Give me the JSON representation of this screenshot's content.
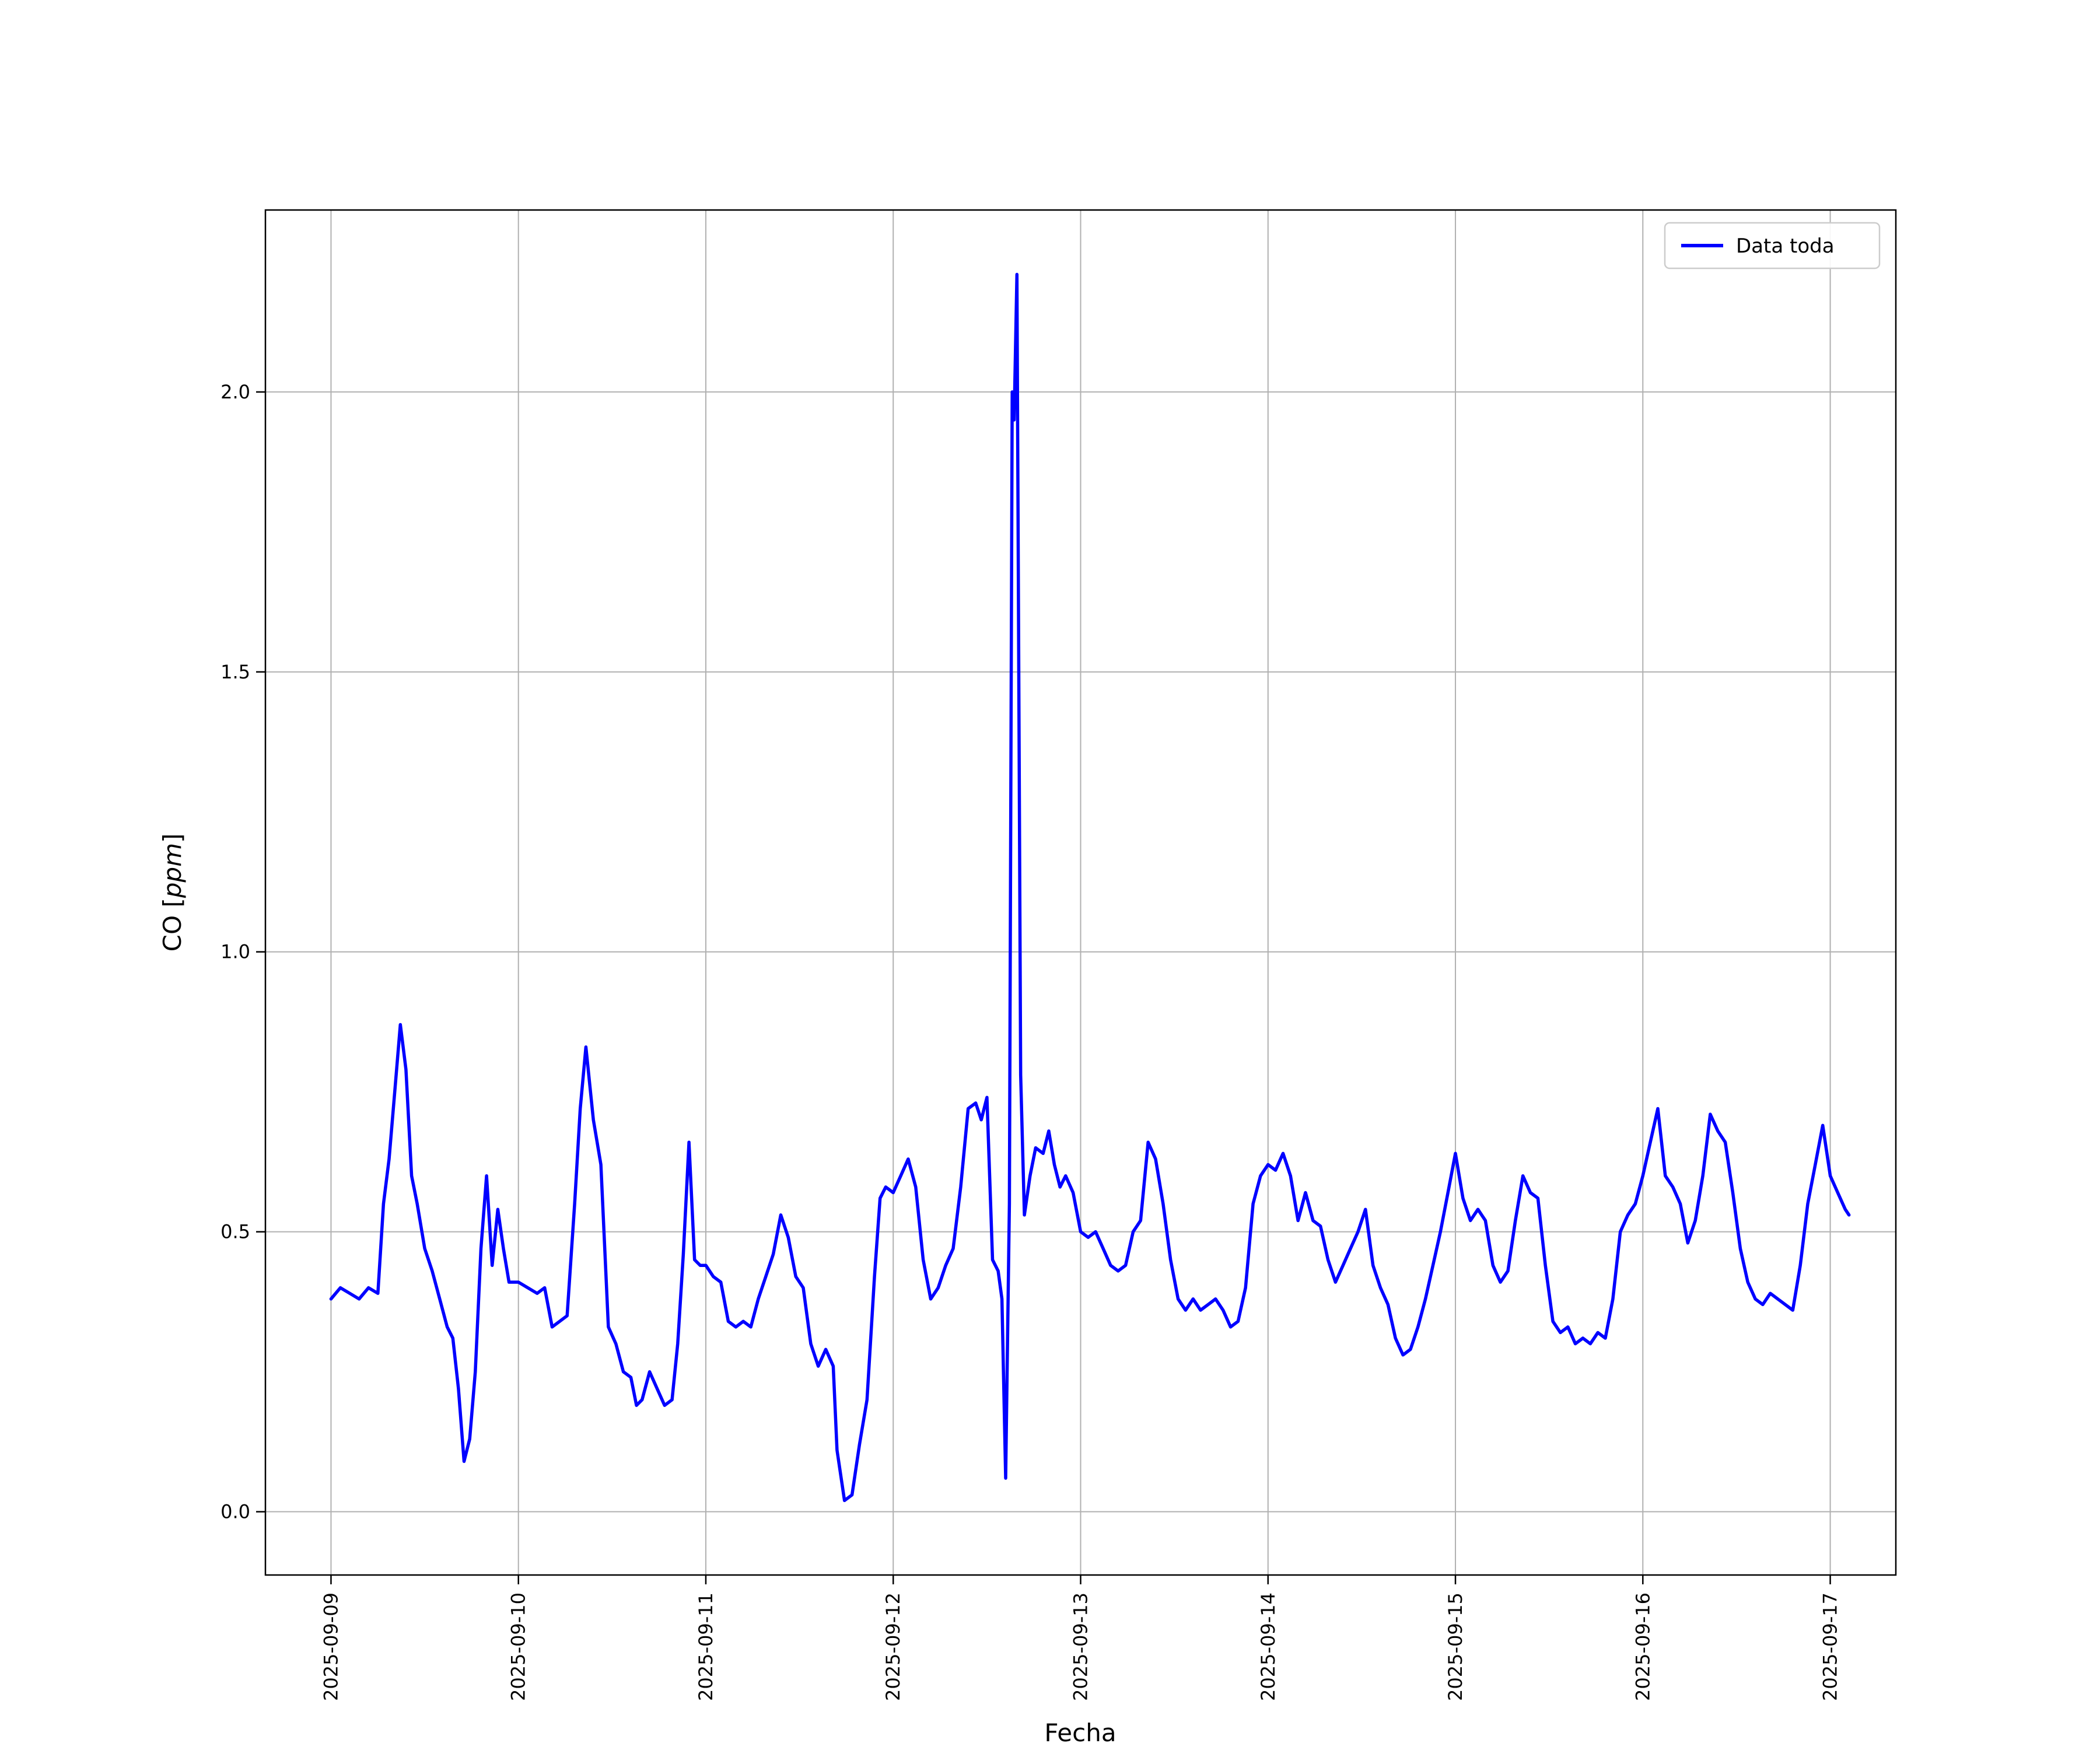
{
  "figure": {
    "background": "#ffffff",
    "axes_edge_color": "#000000",
    "grid_color": "#b0b0b0",
    "legend_edge_color": "#cccccc"
  },
  "legend": {
    "position": "upper right",
    "items": [
      {
        "label": "Data toda",
        "color": "#0000ff"
      }
    ]
  },
  "chart_data": {
    "type": "line",
    "title": "",
    "xlabel": "Fecha",
    "ylabel": "CO [ppm]",
    "ylabel_parts": {
      "prefix": "CO [",
      "math": "ppm",
      "suffix": "]"
    },
    "grid": true,
    "legend_position": "upper right",
    "xlim": [
      -0.35,
      8.35
    ],
    "ylim": [
      -0.113,
      2.325
    ],
    "x_unit": "days since 2025-09-09",
    "x_tick_positions": [
      0,
      1,
      2,
      3,
      4,
      5,
      6,
      7,
      8
    ],
    "x_tick_labels": [
      "2025-09-09",
      "2025-09-10",
      "2025-09-11",
      "2025-09-12",
      "2025-09-13",
      "2025-09-14",
      "2025-09-15",
      "2025-09-16",
      "2025-09-17"
    ],
    "y_ticks": [
      0.0,
      0.5,
      1.0,
      1.5,
      2.0
    ],
    "y_tick_labels": [
      "0.0",
      "0.5",
      "1.0",
      "1.5",
      "2.0"
    ],
    "series": [
      {
        "name": "Data toda",
        "color": "#0000ff",
        "line_width": 5.5,
        "points": [
          [
            0.0,
            0.38
          ],
          [
            0.05,
            0.4
          ],
          [
            0.1,
            0.39
          ],
          [
            0.15,
            0.38
          ],
          [
            0.2,
            0.4
          ],
          [
            0.25,
            0.39
          ],
          [
            0.28,
            0.55
          ],
          [
            0.31,
            0.63
          ],
          [
            0.34,
            0.75
          ],
          [
            0.37,
            0.87
          ],
          [
            0.4,
            0.79
          ],
          [
            0.43,
            0.6
          ],
          [
            0.46,
            0.55
          ],
          [
            0.5,
            0.47
          ],
          [
            0.54,
            0.43
          ],
          [
            0.58,
            0.38
          ],
          [
            0.62,
            0.33
          ],
          [
            0.65,
            0.31
          ],
          [
            0.68,
            0.22
          ],
          [
            0.71,
            0.09
          ],
          [
            0.74,
            0.13
          ],
          [
            0.77,
            0.25
          ],
          [
            0.8,
            0.47
          ],
          [
            0.83,
            0.6
          ],
          [
            0.86,
            0.44
          ],
          [
            0.89,
            0.54
          ],
          [
            0.92,
            0.47
          ],
          [
            0.95,
            0.41
          ],
          [
            1.0,
            0.41
          ],
          [
            1.05,
            0.4
          ],
          [
            1.1,
            0.39
          ],
          [
            1.14,
            0.4
          ],
          [
            1.18,
            0.33
          ],
          [
            1.22,
            0.34
          ],
          [
            1.26,
            0.35
          ],
          [
            1.3,
            0.55
          ],
          [
            1.33,
            0.72
          ],
          [
            1.36,
            0.83
          ],
          [
            1.4,
            0.7
          ],
          [
            1.44,
            0.62
          ],
          [
            1.48,
            0.33
          ],
          [
            1.52,
            0.3
          ],
          [
            1.56,
            0.25
          ],
          [
            1.6,
            0.24
          ],
          [
            1.63,
            0.19
          ],
          [
            1.66,
            0.2
          ],
          [
            1.7,
            0.25
          ],
          [
            1.74,
            0.22
          ],
          [
            1.78,
            0.19
          ],
          [
            1.82,
            0.2
          ],
          [
            1.85,
            0.3
          ],
          [
            1.88,
            0.46
          ],
          [
            1.91,
            0.66
          ],
          [
            1.94,
            0.45
          ],
          [
            1.97,
            0.44
          ],
          [
            2.0,
            0.44
          ],
          [
            2.04,
            0.42
          ],
          [
            2.08,
            0.41
          ],
          [
            2.12,
            0.34
          ],
          [
            2.16,
            0.33
          ],
          [
            2.2,
            0.34
          ],
          [
            2.24,
            0.33
          ],
          [
            2.28,
            0.38
          ],
          [
            2.32,
            0.42
          ],
          [
            2.36,
            0.46
          ],
          [
            2.4,
            0.53
          ],
          [
            2.44,
            0.49
          ],
          [
            2.48,
            0.42
          ],
          [
            2.52,
            0.4
          ],
          [
            2.56,
            0.3
          ],
          [
            2.6,
            0.26
          ],
          [
            2.64,
            0.29
          ],
          [
            2.68,
            0.26
          ],
          [
            2.7,
            0.11
          ],
          [
            2.74,
            0.02
          ],
          [
            2.78,
            0.03
          ],
          [
            2.82,
            0.12
          ],
          [
            2.86,
            0.2
          ],
          [
            2.9,
            0.42
          ],
          [
            2.93,
            0.56
          ],
          [
            2.96,
            0.58
          ],
          [
            3.0,
            0.57
          ],
          [
            3.04,
            0.6
          ],
          [
            3.08,
            0.63
          ],
          [
            3.12,
            0.58
          ],
          [
            3.16,
            0.45
          ],
          [
            3.2,
            0.38
          ],
          [
            3.24,
            0.4
          ],
          [
            3.28,
            0.44
          ],
          [
            3.32,
            0.47
          ],
          [
            3.36,
            0.58
          ],
          [
            3.4,
            0.72
          ],
          [
            3.44,
            0.73
          ],
          [
            3.47,
            0.7
          ],
          [
            3.5,
            0.74
          ],
          [
            3.53,
            0.45
          ],
          [
            3.56,
            0.43
          ],
          [
            3.58,
            0.38
          ],
          [
            3.6,
            0.06
          ],
          [
            3.62,
            0.55
          ],
          [
            3.635,
            2.0
          ],
          [
            3.645,
            1.95
          ],
          [
            3.66,
            2.21
          ],
          [
            3.68,
            0.78
          ],
          [
            3.7,
            0.53
          ],
          [
            3.73,
            0.6
          ],
          [
            3.76,
            0.65
          ],
          [
            3.8,
            0.64
          ],
          [
            3.83,
            0.68
          ],
          [
            3.86,
            0.62
          ],
          [
            3.89,
            0.58
          ],
          [
            3.92,
            0.6
          ],
          [
            3.96,
            0.57
          ],
          [
            4.0,
            0.5
          ],
          [
            4.04,
            0.49
          ],
          [
            4.08,
            0.5
          ],
          [
            4.12,
            0.47
          ],
          [
            4.16,
            0.44
          ],
          [
            4.2,
            0.43
          ],
          [
            4.24,
            0.44
          ],
          [
            4.28,
            0.5
          ],
          [
            4.32,
            0.52
          ],
          [
            4.36,
            0.66
          ],
          [
            4.4,
            0.63
          ],
          [
            4.44,
            0.55
          ],
          [
            4.48,
            0.45
          ],
          [
            4.52,
            0.38
          ],
          [
            4.56,
            0.36
          ],
          [
            4.6,
            0.38
          ],
          [
            4.64,
            0.36
          ],
          [
            4.68,
            0.37
          ],
          [
            4.72,
            0.38
          ],
          [
            4.76,
            0.36
          ],
          [
            4.8,
            0.33
          ],
          [
            4.84,
            0.34
          ],
          [
            4.88,
            0.4
          ],
          [
            4.92,
            0.55
          ],
          [
            4.96,
            0.6
          ],
          [
            5.0,
            0.62
          ],
          [
            5.04,
            0.61
          ],
          [
            5.08,
            0.64
          ],
          [
            5.12,
            0.6
          ],
          [
            5.16,
            0.52
          ],
          [
            5.2,
            0.57
          ],
          [
            5.24,
            0.52
          ],
          [
            5.28,
            0.51
          ],
          [
            5.32,
            0.45
          ],
          [
            5.36,
            0.41
          ],
          [
            5.4,
            0.44
          ],
          [
            5.44,
            0.47
          ],
          [
            5.48,
            0.5
          ],
          [
            5.52,
            0.54
          ],
          [
            5.56,
            0.44
          ],
          [
            5.6,
            0.4
          ],
          [
            5.64,
            0.37
          ],
          [
            5.68,
            0.31
          ],
          [
            5.72,
            0.28
          ],
          [
            5.76,
            0.29
          ],
          [
            5.8,
            0.33
          ],
          [
            5.84,
            0.38
          ],
          [
            5.88,
            0.44
          ],
          [
            5.92,
            0.5
          ],
          [
            5.96,
            0.57
          ],
          [
            6.0,
            0.64
          ],
          [
            6.04,
            0.56
          ],
          [
            6.08,
            0.52
          ],
          [
            6.12,
            0.54
          ],
          [
            6.16,
            0.52
          ],
          [
            6.2,
            0.44
          ],
          [
            6.24,
            0.41
          ],
          [
            6.28,
            0.43
          ],
          [
            6.32,
            0.52
          ],
          [
            6.36,
            0.6
          ],
          [
            6.4,
            0.57
          ],
          [
            6.44,
            0.56
          ],
          [
            6.48,
            0.44
          ],
          [
            6.52,
            0.34
          ],
          [
            6.56,
            0.32
          ],
          [
            6.6,
            0.33
          ],
          [
            6.64,
            0.3
          ],
          [
            6.68,
            0.31
          ],
          [
            6.72,
            0.3
          ],
          [
            6.76,
            0.32
          ],
          [
            6.8,
            0.31
          ],
          [
            6.84,
            0.38
          ],
          [
            6.88,
            0.5
          ],
          [
            6.92,
            0.53
          ],
          [
            6.96,
            0.55
          ],
          [
            7.0,
            0.6
          ],
          [
            7.04,
            0.66
          ],
          [
            7.08,
            0.72
          ],
          [
            7.12,
            0.6
          ],
          [
            7.16,
            0.58
          ],
          [
            7.2,
            0.55
          ],
          [
            7.24,
            0.48
          ],
          [
            7.28,
            0.52
          ],
          [
            7.32,
            0.6
          ],
          [
            7.36,
            0.71
          ],
          [
            7.4,
            0.68
          ],
          [
            7.44,
            0.66
          ],
          [
            7.48,
            0.57
          ],
          [
            7.52,
            0.47
          ],
          [
            7.56,
            0.41
          ],
          [
            7.6,
            0.38
          ],
          [
            7.64,
            0.37
          ],
          [
            7.68,
            0.39
          ],
          [
            7.72,
            0.38
          ],
          [
            7.76,
            0.37
          ],
          [
            7.8,
            0.36
          ],
          [
            7.84,
            0.44
          ],
          [
            7.88,
            0.55
          ],
          [
            7.92,
            0.62
          ],
          [
            7.96,
            0.69
          ],
          [
            8.0,
            0.6
          ],
          [
            8.04,
            0.57
          ],
          [
            8.08,
            0.54
          ],
          [
            8.1,
            0.53
          ]
        ]
      }
    ]
  }
}
